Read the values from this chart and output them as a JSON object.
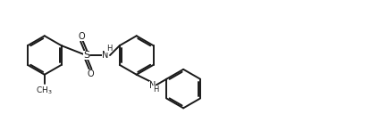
{
  "line_color": "#1a1a1a",
  "bg_color": "#ffffff",
  "lw": 1.4,
  "fs": 7.0,
  "dbo": 0.018,
  "r": 0.22,
  "figsize": [
    4.24,
    1.28
  ],
  "dpi": 100,
  "xlim": [
    0,
    4.24
  ],
  "ylim": [
    0,
    1.28
  ]
}
